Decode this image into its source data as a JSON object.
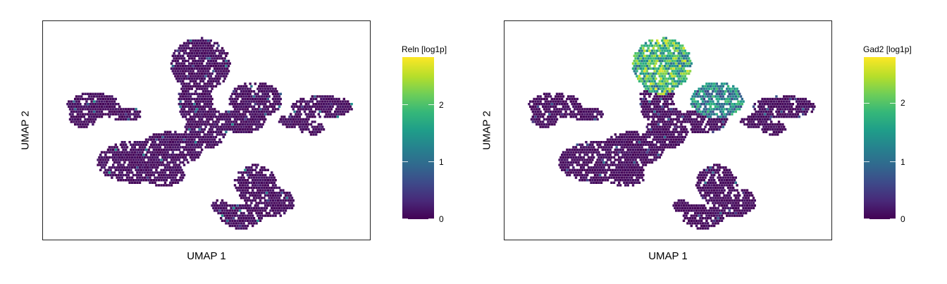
{
  "chart_data": [
    {
      "type": "scatter",
      "xlabel": "UMAP 1",
      "ylabel": "UMAP 2",
      "legend_title": "Reln [log1p]",
      "colorbar": {
        "colormap": "viridis",
        "ticks": [
          "0",
          "1",
          "2"
        ],
        "range": [
          0,
          2.8
        ]
      },
      "expression_pattern": "low",
      "grid": false
    },
    {
      "type": "scatter",
      "xlabel": "UMAP 1",
      "ylabel": "UMAP 2",
      "legend_title": "Gad2 [log1p]",
      "colorbar": {
        "colormap": "viridis",
        "ticks": [
          "0",
          "1",
          "2"
        ],
        "range": [
          0,
          2.8
        ]
      },
      "expression_pattern": "high-top-cluster",
      "grid": false
    }
  ]
}
